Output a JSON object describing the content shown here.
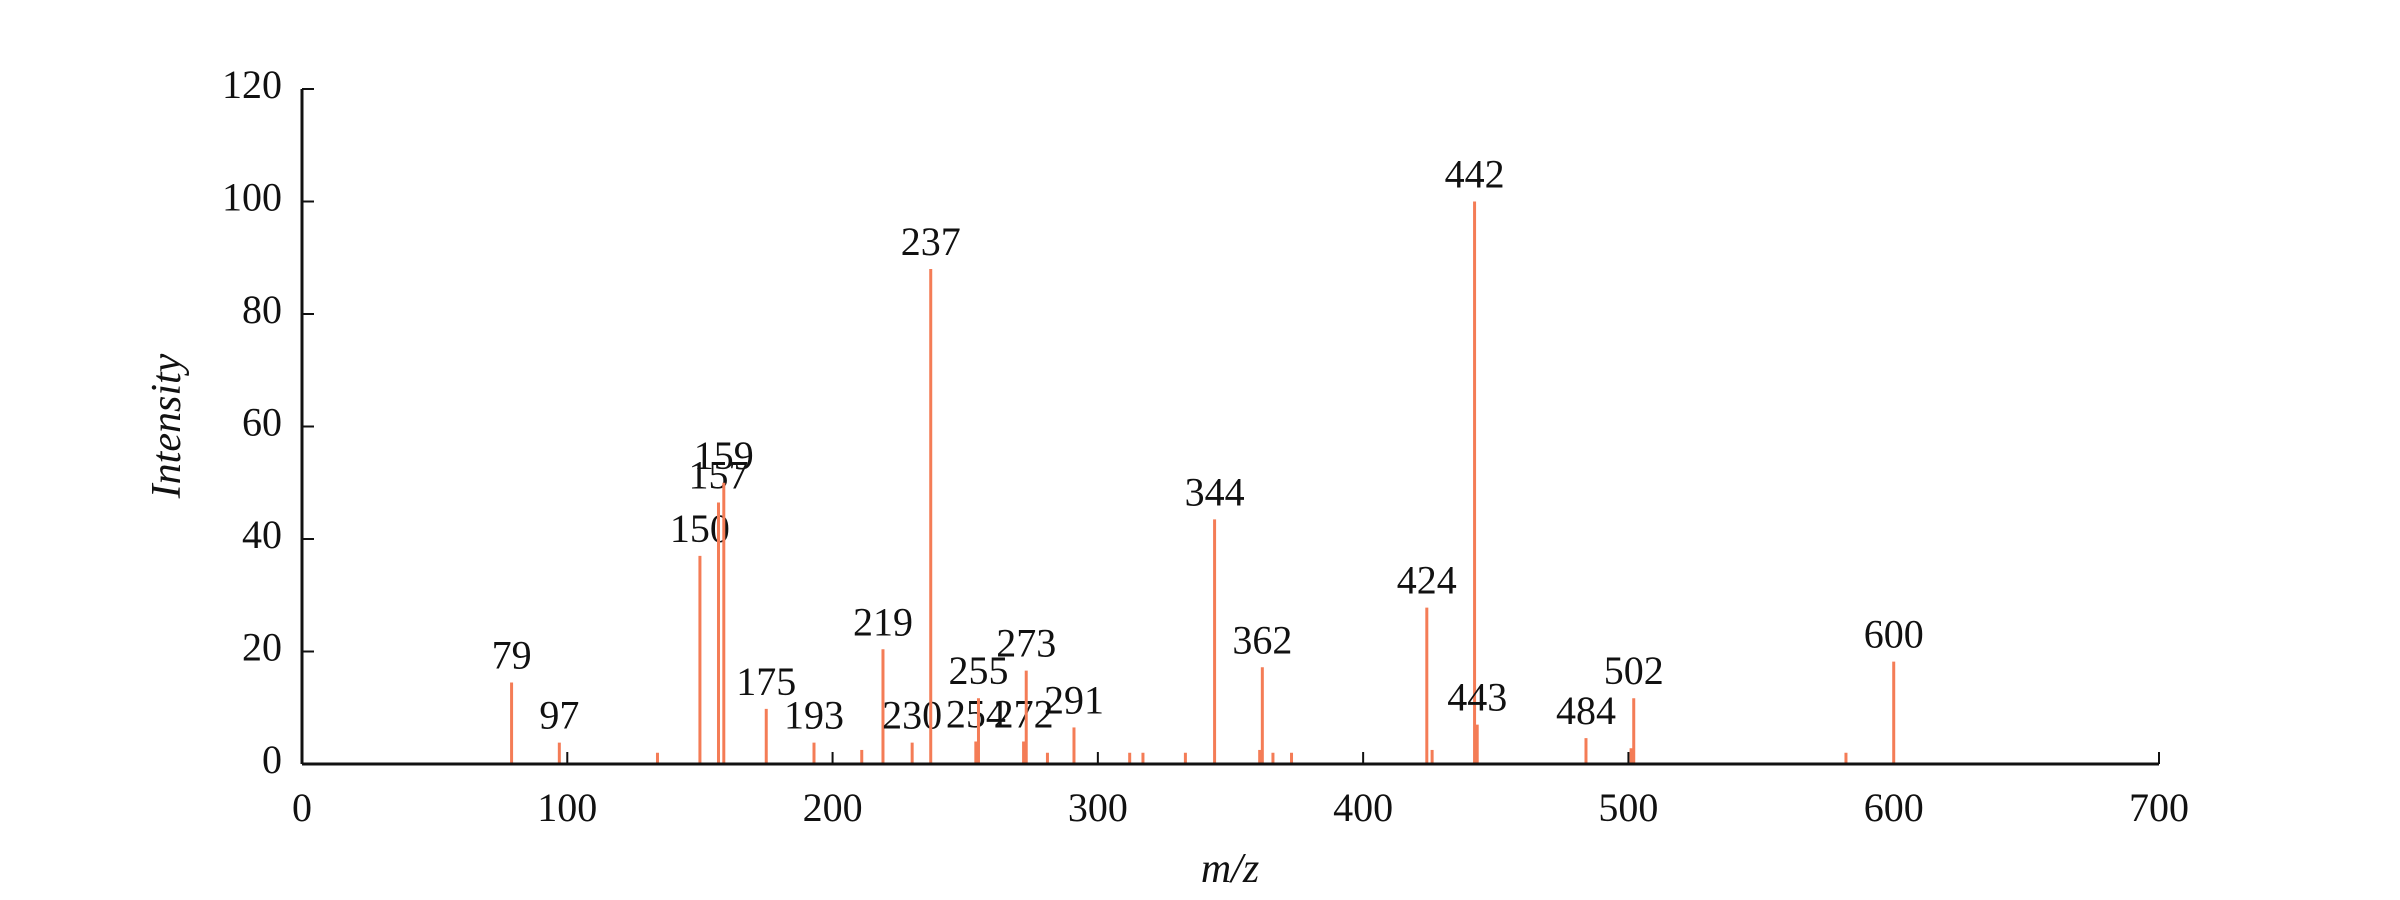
{
  "chart_data": {
    "type": "stem",
    "x_label": "m/z",
    "y_label": "Intensity",
    "x": [
      79,
      97,
      134,
      150,
      157,
      159,
      175,
      193,
      211,
      219,
      230,
      237,
      254,
      255,
      272,
      273,
      281,
      291,
      312,
      317,
      333,
      344,
      361,
      362,
      366,
      373,
      424,
      426,
      442,
      443,
      484,
      501,
      502,
      582,
      600
    ],
    "values": [
      14.5,
      3.8,
      2,
      37,
      46.5,
      50,
      9.8,
      3.8,
      2.5,
      20.4,
      3.8,
      88,
      4,
      11.7,
      4,
      16.6,
      2,
      6.5,
      2,
      2,
      2,
      43.5,
      2.5,
      17.2,
      2,
      2,
      27.8,
      2.5,
      100,
      7,
      4.6,
      2.8,
      11.7,
      2,
      18.2
    ],
    "labels": [
      "79",
      "97",
      null,
      "150",
      "157",
      "159",
      "175",
      "193",
      null,
      "219",
      "230",
      "237",
      "254",
      "255",
      "272",
      "273",
      null,
      "291",
      null,
      null,
      null,
      "344",
      null,
      "362",
      null,
      null,
      "424",
      null,
      "442",
      "443",
      "484",
      null,
      "502",
      null,
      "600"
    ],
    "color": "#f47c56",
    "xlim": [
      0,
      700
    ],
    "xticks": [
      0,
      100,
      200,
      300,
      400,
      500,
      600,
      700
    ],
    "ylim": [
      0,
      120
    ],
    "yticks": [
      0,
      20,
      40,
      60,
      80,
      100,
      120
    ],
    "grid": false
  }
}
